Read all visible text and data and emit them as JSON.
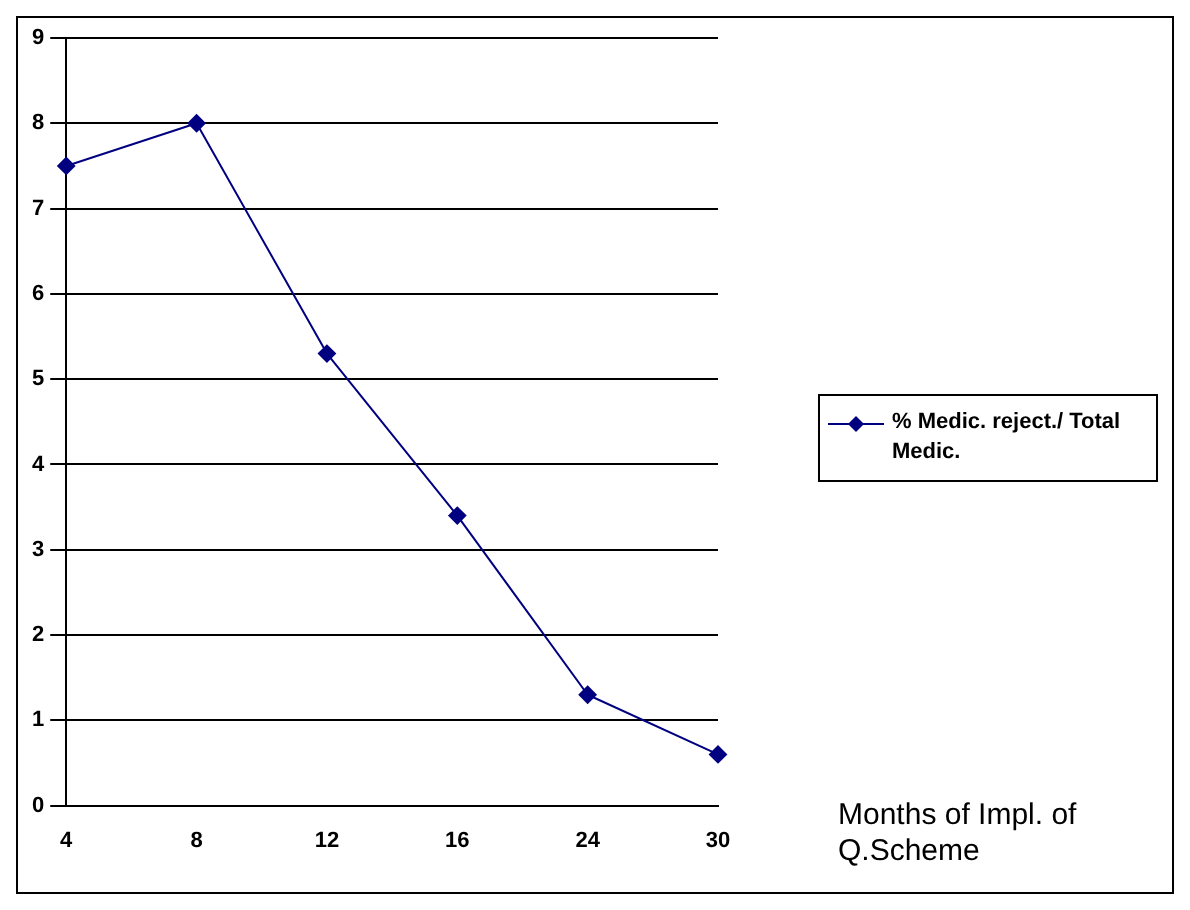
{
  "chart_data": {
    "type": "line",
    "categories": [
      "4",
      "8",
      "12",
      "16",
      "24",
      "30"
    ],
    "series": [
      {
        "name": "% Medic. reject./ Total Medic.",
        "color": "#000080",
        "values": [
          7.5,
          8.0,
          5.3,
          3.4,
          1.3,
          0.6
        ]
      }
    ],
    "ylim": [
      0,
      9
    ],
    "yticks": [
      0,
      1,
      2,
      3,
      4,
      5,
      6,
      7,
      8,
      9
    ],
    "grid": "y",
    "legend": "right",
    "marker": "diamond",
    "line_style": "solid",
    "xlabel": "Months of Impl. of Q.Scheme"
  }
}
